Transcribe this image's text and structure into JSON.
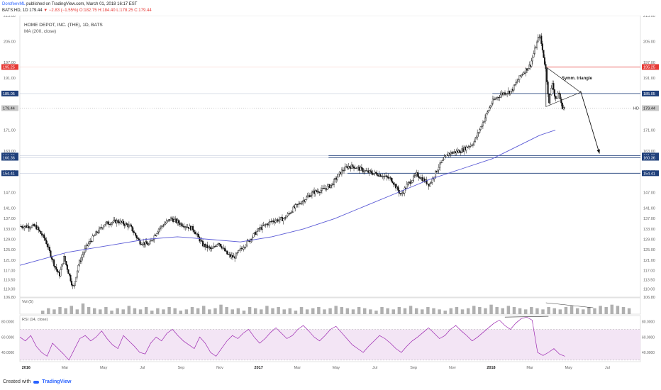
{
  "header": {
    "author": "DorofeevML",
    "published": "published on TradingView.com, March 01, 2018 16:17 EST",
    "symbol": "BATS:HD, 1D",
    "last": "179.44",
    "change": "▼ −2.83 (−1.55%)",
    "ohlc": "O:182.75 H:184.40 L:178.25 C:179.44"
  },
  "footer": {
    "created_with": "Created with",
    "brand": "TradingView"
  },
  "colors": {
    "candle": "#111111",
    "ma": "#5b5bd6",
    "level_red": "#e53935",
    "level_blue": "#1f3f7a",
    "rsi_line": "#9c27b0",
    "rsi_band": "#f3e5f5",
    "volume": "#b0b0b0"
  },
  "chart_data": {
    "type": "candlestick",
    "title": "HOME DEPOT, INC. (THE), 1D, BATS",
    "indicator_label": "MA (200, close)",
    "annotation": "Symm. triangle",
    "current_price": "179.44",
    "current_tag": "HD",
    "y_ticks": [
      "215.00",
      "205.00",
      "197.00",
      "191.00",
      "185.00",
      "179.00",
      "171.00",
      "163.00",
      "155.00",
      "147.00",
      "141.00",
      "137.00",
      "133.00",
      "129.00",
      "125.00",
      "121.00",
      "117.00",
      "113.50",
      "110.00",
      "106.80"
    ],
    "ylim": [
      106.8,
      215
    ],
    "x_ticks": [
      "2016",
      "Mar",
      "May",
      "Jul",
      "Sep",
      "Nov",
      "2017",
      "Mar",
      "May",
      "Jul",
      "Sep",
      "Nov",
      "2018",
      "Mar",
      "May",
      "Jul"
    ],
    "levels": [
      {
        "price": 195.25,
        "label": "195.25",
        "color": "red"
      },
      {
        "price": 185.05,
        "label": "185.05",
        "color": "blue"
      },
      {
        "price": 161.2,
        "label": "161.20",
        "color": "blue"
      },
      {
        "price": 160.36,
        "label": "160.36",
        "color": "blue"
      },
      {
        "price": 154.41,
        "label": "154.41",
        "color": "blue"
      }
    ],
    "price_path": [
      [
        0,
        134
      ],
      [
        5,
        134
      ],
      [
        8,
        129
      ],
      [
        11,
        119
      ],
      [
        12.5,
        115
      ],
      [
        14,
        122
      ],
      [
        15.5,
        116
      ],
      [
        17,
        110
      ],
      [
        18.5,
        119
      ],
      [
        21,
        126
      ],
      [
        24,
        131
      ],
      [
        27,
        135
      ],
      [
        31,
        136
      ],
      [
        35,
        134
      ],
      [
        38,
        128
      ],
      [
        41,
        127
      ],
      [
        44,
        133
      ],
      [
        48,
        137
      ],
      [
        51,
        135
      ],
      [
        55,
        133
      ],
      [
        58,
        127
      ],
      [
        61,
        125
      ],
      [
        63,
        128
      ],
      [
        66,
        123
      ],
      [
        68,
        122
      ],
      [
        70,
        125
      ],
      [
        73,
        129
      ],
      [
        76,
        133
      ],
      [
        80,
        136
      ],
      [
        84,
        137
      ],
      [
        87,
        141
      ],
      [
        90,
        144
      ],
      [
        93,
        147
      ],
      [
        96,
        148
      ],
      [
        99,
        150
      ],
      [
        102,
        155
      ],
      [
        104,
        157
      ],
      [
        106,
        157
      ],
      [
        110,
        155
      ],
      [
        114,
        154
      ],
      [
        118,
        152
      ],
      [
        121,
        146
      ],
      [
        123,
        150
      ],
      [
        126,
        154
      ],
      [
        128,
        152
      ],
      [
        130,
        150
      ],
      [
        133,
        157
      ],
      [
        136,
        162
      ],
      [
        140,
        163
      ],
      [
        144,
        166
      ],
      [
        147,
        174
      ],
      [
        150,
        182
      ],
      [
        153,
        185
      ],
      [
        156,
        186
      ],
      [
        159,
        192
      ],
      [
        162,
        196
      ],
      [
        165,
        208
      ],
      [
        166,
        201
      ],
      [
        167,
        194
      ],
      [
        168,
        181
      ],
      [
        169,
        190
      ],
      [
        170,
        182
      ],
      [
        171,
        186
      ],
      [
        172,
        180
      ],
      [
        173,
        179.44
      ]
    ],
    "ma_path": [
      [
        0,
        119
      ],
      [
        15,
        124
      ],
      [
        30,
        127
      ],
      [
        40,
        129
      ],
      [
        50,
        130
      ],
      [
        60,
        129
      ],
      [
        70,
        128
      ],
      [
        80,
        130
      ],
      [
        90,
        133
      ],
      [
        100,
        137
      ],
      [
        110,
        142
      ],
      [
        120,
        147
      ],
      [
        130,
        152
      ],
      [
        140,
        156
      ],
      [
        150,
        160
      ],
      [
        160,
        166
      ],
      [
        165,
        169
      ],
      [
        170,
        171
      ]
    ],
    "triangle": [
      [
        167,
        195.25
      ],
      [
        167,
        180
      ],
      [
        178,
        185.5
      ]
    ],
    "projection": [
      [
        178,
        186
      ],
      [
        184,
        162
      ]
    ],
    "volume": {
      "label": "Vol (5)",
      "values": [
        3,
        5,
        4,
        6,
        5,
        7,
        4,
        9,
        6,
        5,
        4,
        6,
        3,
        5,
        4,
        7,
        5,
        4,
        6,
        3,
        5,
        4,
        6,
        5,
        3,
        4,
        6,
        5,
        7,
        4,
        5,
        8,
        6,
        4,
        5,
        3,
        6,
        5,
        4,
        7,
        5,
        6,
        4,
        5,
        3,
        6,
        4,
        5,
        6,
        4,
        5,
        7,
        6,
        5,
        4,
        6,
        5,
        4,
        3,
        6,
        5,
        4,
        6,
        5,
        7,
        5,
        4,
        6,
        5,
        4,
        3,
        5,
        6,
        4,
        5,
        7,
        6,
        5,
        8,
        6,
        5,
        7,
        6,
        5,
        4,
        6,
        5,
        4,
        6,
        5,
        4,
        6,
        7,
        5,
        4,
        6,
        5,
        7,
        6,
        8,
        7,
        6,
        5
      ]
    },
    "rsi": {
      "label": "RSI (14, close)",
      "y_ticks": [
        "80.0000",
        "60.0000",
        "40.0000"
      ],
      "ylim": [
        28,
        88
      ],
      "band": [
        30,
        70
      ],
      "values": [
        60,
        55,
        62,
        48,
        40,
        35,
        52,
        45,
        38,
        30,
        44,
        58,
        62,
        55,
        60,
        68,
        58,
        50,
        45,
        62,
        55,
        48,
        40,
        38,
        52,
        60,
        55,
        65,
        70,
        62,
        55,
        50,
        45,
        60,
        52,
        40,
        35,
        45,
        55,
        62,
        58,
        65,
        70,
        60,
        52,
        58,
        66,
        72,
        65,
        58,
        62,
        70,
        75,
        68,
        60,
        55,
        62,
        70,
        74,
        66,
        58,
        50,
        45,
        40,
        48,
        55,
        62,
        58,
        52,
        45,
        40,
        48,
        55,
        60,
        66,
        72,
        65,
        58,
        62,
        70,
        75,
        68,
        62,
        55,
        60,
        66,
        72,
        78,
        82,
        75,
        70,
        78,
        84,
        86,
        82,
        40,
        36,
        40,
        45,
        38,
        35
      ]
    }
  }
}
